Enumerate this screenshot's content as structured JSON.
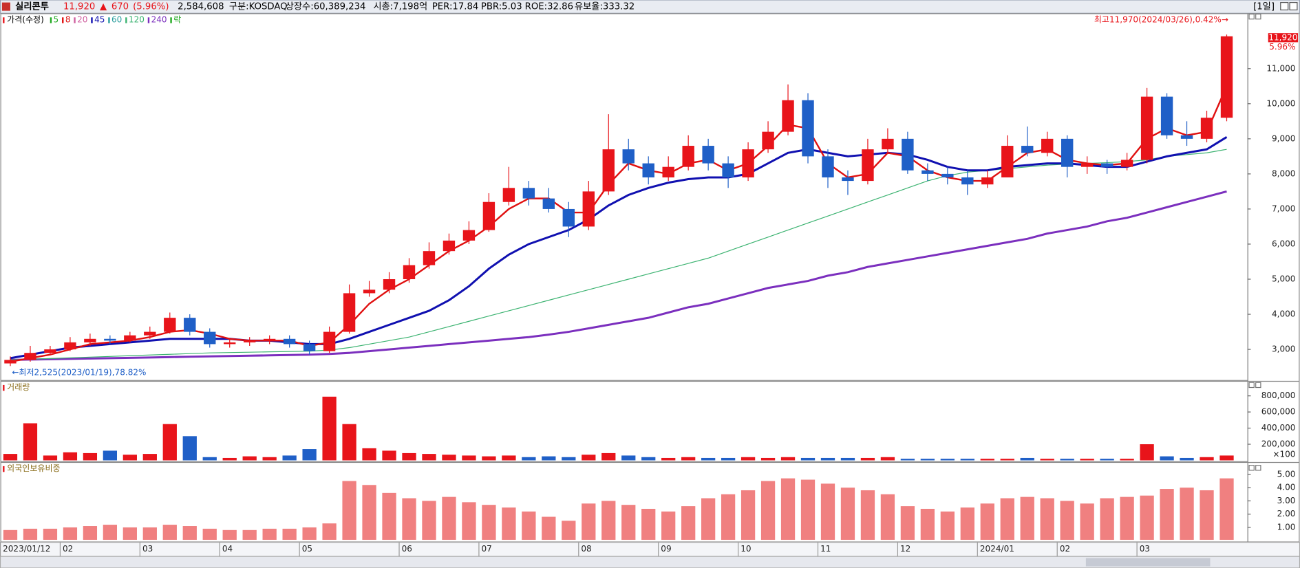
{
  "header": {
    "name": "실리콘투",
    "price": "11,920",
    "arrow": "▲",
    "change": "670",
    "change_pct": "(5.96%)",
    "volume": "2,584,608",
    "market": "구분:KOSDAQ",
    "shares": "상장수:60,389,234",
    "cap": "시총:7,198억",
    "per": "PER:17.84",
    "pbr": "PBR:5.03",
    "roe": "ROE:32.86",
    "reserve": "유보율:333.32",
    "period": "[1일]"
  },
  "chart_data": [
    {
      "type": "candlestick",
      "title": "가격(수정)",
      "legend": [
        {
          "name": "5",
          "color": "#22aa22"
        },
        {
          "name": "8",
          "color": "#e01010"
        },
        {
          "name": "20",
          "color": "#d060a0"
        },
        {
          "name": "45",
          "color": "#1010b0"
        },
        {
          "name": "60",
          "color": "#2a9d9d"
        },
        {
          "name": "120",
          "color": "#3cb371"
        },
        {
          "name": "240",
          "color": "#7b2fbe"
        },
        {
          "name": "락",
          "color": "#22aa22"
        }
      ],
      "categories": [
        "2023/01/12",
        null,
        null,
        "02",
        null,
        null,
        null,
        "03",
        null,
        null,
        null,
        "04",
        null,
        null,
        null,
        "05",
        null,
        null,
        null,
        null,
        "06",
        null,
        null,
        null,
        "07",
        null,
        null,
        null,
        null,
        "08",
        null,
        null,
        null,
        "09",
        null,
        null,
        null,
        "10",
        null,
        null,
        null,
        "11",
        null,
        null,
        null,
        "12",
        null,
        null,
        null,
        "2024/01",
        null,
        null,
        null,
        "02",
        null,
        null,
        null,
        "03",
        null,
        null,
        null,
        null
      ],
      "open": [
        2600,
        2700,
        2900,
        3000,
        3200,
        3300,
        3250,
        3400,
        3500,
        3900,
        3500,
        3150,
        3200,
        3250,
        3300,
        3150,
        2950,
        3500,
        4600,
        4700,
        5000,
        5400,
        5800,
        6100,
        6400,
        7200,
        7600,
        7300,
        7000,
        6500,
        7500,
        8700,
        8300,
        7900,
        8200,
        8800,
        8300,
        7900,
        8700,
        9200,
        10100,
        8500,
        7900,
        7800,
        8700,
        9000,
        8100,
        8000,
        7900,
        7700,
        7900,
        8800,
        8600,
        9000,
        8200,
        8300,
        8200,
        8400,
        10200,
        9100,
        9000,
        9600
      ],
      "high": [
        2800,
        3100,
        3100,
        3350,
        3450,
        3400,
        3500,
        3650,
        4050,
        4000,
        3600,
        3300,
        3350,
        3400,
        3400,
        3250,
        3650,
        4850,
        4950,
        5200,
        5600,
        6050,
        6300,
        6650,
        7450,
        8200,
        7800,
        7600,
        7200,
        7800,
        9700,
        9000,
        8500,
        8500,
        9100,
        9000,
        8500,
        8900,
        9500,
        10550,
        10300,
        8700,
        8100,
        9000,
        9300,
        9200,
        8300,
        8200,
        8100,
        8100,
        9100,
        9350,
        9200,
        9100,
        8500,
        8400,
        8600,
        10450,
        10300,
        9500,
        9800,
        11970
      ],
      "low": [
        2525,
        2650,
        2850,
        2950,
        3100,
        3150,
        3200,
        3300,
        3450,
        3400,
        3050,
        3050,
        3100,
        3150,
        3050,
        2850,
        2900,
        3450,
        4500,
        4600,
        4900,
        5300,
        5700,
        6000,
        6350,
        7100,
        7100,
        6900,
        6200,
        6400,
        7400,
        8100,
        7700,
        7800,
        8100,
        8100,
        7600,
        7800,
        8600,
        9100,
        8300,
        7600,
        7400,
        7700,
        8600,
        8000,
        7800,
        7700,
        7400,
        7600,
        7900,
        8500,
        8500,
        7900,
        8000,
        8000,
        8100,
        8300,
        9000,
        8800,
        8900,
        9500
      ],
      "close": [
        2700,
        2900,
        3000,
        3200,
        3300,
        3250,
        3400,
        3500,
        3900,
        3500,
        3150,
        3200,
        3250,
        3300,
        3150,
        2950,
        3500,
        4600,
        4700,
        5000,
        5400,
        5800,
        6100,
        6400,
        7200,
        7600,
        7300,
        7000,
        6500,
        7500,
        8700,
        8300,
        7900,
        8200,
        8800,
        8300,
        7900,
        8700,
        9200,
        10100,
        8500,
        7900,
        7800,
        8700,
        9000,
        8100,
        8000,
        7900,
        7700,
        7900,
        8800,
        8600,
        9000,
        8200,
        8300,
        8200,
        8400,
        10200,
        9100,
        9000,
        9600,
        11920
      ],
      "up_color": "#e8141a",
      "down_color": "#1f5fc7",
      "series": [
        {
          "name": "240",
          "color": "#7b2fbe",
          "width": 2.5,
          "values": [
            2700,
            2710,
            2720,
            2730,
            2740,
            2750,
            2760,
            2770,
            2780,
            2790,
            2800,
            2810,
            2820,
            2830,
            2840,
            2850,
            2870,
            2900,
            2950,
            3000,
            3050,
            3100,
            3150,
            3200,
            3250,
            3300,
            3350,
            3420,
            3500,
            3600,
            3700,
            3800,
            3900,
            4050,
            4200,
            4300,
            4450,
            4600,
            4750,
            4850,
            4950,
            5100,
            5200,
            5350,
            5450,
            5550,
            5650,
            5750,
            5850,
            5950,
            6050,
            6150,
            6300,
            6400,
            6500,
            6650,
            6750,
            6900,
            7050,
            7200,
            7350,
            7500
          ]
        },
        {
          "name": "120",
          "color": "#3cb371",
          "width": 1,
          "values": [
            2700,
            2720,
            2740,
            2760,
            2780,
            2800,
            2820,
            2840,
            2860,
            2880,
            2900,
            2910,
            2920,
            2930,
            2940,
            2950,
            2980,
            3050,
            3150,
            3250,
            3350,
            3500,
            3650,
            3800,
            3950,
            4100,
            4250,
            4400,
            4550,
            4700,
            4850,
            5000,
            5150,
            5300,
            5450,
            5600,
            5800,
            6000,
            6200,
            6400,
            6600,
            6800,
            7000,
            7200,
            7400,
            7600,
            7800,
            7950,
            8050,
            8100,
            8150,
            8200,
            8250,
            8280,
            8300,
            8320,
            8350,
            8400,
            8500,
            8550,
            8600,
            8700
          ]
        },
        {
          "name": "45",
          "color": "#1010b0",
          "width": 2.5,
          "values": [
            2750,
            2850,
            2950,
            3050,
            3100,
            3150,
            3200,
            3250,
            3300,
            3300,
            3300,
            3300,
            3250,
            3250,
            3200,
            3150,
            3150,
            3300,
            3500,
            3700,
            3900,
            4100,
            4400,
            4800,
            5300,
            5700,
            6000,
            6200,
            6400,
            6700,
            7100,
            7400,
            7600,
            7750,
            7850,
            7900,
            7900,
            8000,
            8300,
            8600,
            8700,
            8600,
            8500,
            8550,
            8600,
            8550,
            8400,
            8200,
            8100,
            8100,
            8200,
            8250,
            8300,
            8300,
            8250,
            8200,
            8200,
            8350,
            8500,
            8600,
            8700,
            9050
          ]
        },
        {
          "name": "8",
          "color": "#e01010",
          "width": 2,
          "values": [
            2650,
            2750,
            2850,
            3000,
            3150,
            3200,
            3250,
            3350,
            3500,
            3550,
            3450,
            3300,
            3250,
            3250,
            3250,
            3100,
            3200,
            3700,
            4300,
            4700,
            5000,
            5400,
            5800,
            6100,
            6500,
            7000,
            7300,
            7300,
            6900,
            6900,
            7700,
            8300,
            8100,
            8000,
            8300,
            8400,
            8100,
            8300,
            8800,
            9400,
            9300,
            8300,
            7900,
            8000,
            8600,
            8500,
            8100,
            7900,
            7800,
            7800,
            8200,
            8600,
            8700,
            8400,
            8300,
            8250,
            8300,
            9000,
            9300,
            9100,
            9200,
            10500
          ]
        }
      ],
      "ylim": [
        2150,
        12530
      ],
      "yticks": [
        {
          "value": 3000,
          "label": "3,000"
        },
        {
          "value": 4000,
          "label": "4,000"
        },
        {
          "value": 5000,
          "label": "5,000"
        },
        {
          "value": 6000,
          "label": "6,000"
        },
        {
          "value": 7000,
          "label": "7,000"
        },
        {
          "value": 8000,
          "label": "8,000"
        },
        {
          "value": 9000,
          "label": "9,000"
        },
        {
          "value": 10000,
          "label": "10,000"
        },
        {
          "value": 11000,
          "label": "11,000"
        }
      ],
      "annotations": [
        "최고11,970(2024/03/26),0.42%→",
        "←최저2,525(2023/01/19),78.82%"
      ],
      "last_price": "11,920",
      "last_change": "5.96%"
    },
    {
      "type": "bar",
      "title": "거래량",
      "unit": "×100",
      "values": [
        80000,
        460000,
        60000,
        100000,
        90000,
        120000,
        70000,
        80000,
        450000,
        300000,
        40000,
        30000,
        50000,
        40000,
        60000,
        140000,
        790000,
        450000,
        150000,
        120000,
        90000,
        80000,
        70000,
        60000,
        50000,
        60000,
        40000,
        50000,
        40000,
        70000,
        90000,
        60000,
        40000,
        30000,
        40000,
        30000,
        30000,
        40000,
        30000,
        40000,
        30000,
        30000,
        30000,
        30000,
        40000,
        20000,
        20000,
        20000,
        20000,
        20000,
        20000,
        30000,
        20000,
        20000,
        20000,
        20000,
        20000,
        200000,
        50000,
        30000,
        40000,
        60000
      ],
      "ylim": [
        0,
        955000
      ],
      "yticks": [
        {
          "value": 200000,
          "label": "200,000"
        },
        {
          "value": 400000,
          "label": "400,000"
        },
        {
          "value": 600000,
          "label": "600,000"
        },
        {
          "value": 800000,
          "label": "800,000"
        }
      ]
    },
    {
      "type": "bar",
      "title": "외국인보유비중",
      "color": "#f08080",
      "values": [
        0.8,
        0.9,
        0.9,
        1.0,
        1.1,
        1.2,
        1.0,
        1.0,
        1.2,
        1.1,
        0.9,
        0.8,
        0.8,
        0.9,
        0.9,
        1.0,
        1.3,
        4.5,
        4.2,
        3.6,
        3.2,
        3.0,
        3.3,
        2.9,
        2.7,
        2.5,
        2.2,
        1.8,
        1.5,
        2.8,
        3.0,
        2.7,
        2.4,
        2.2,
        2.6,
        3.2,
        3.5,
        3.8,
        4.5,
        4.7,
        4.6,
        4.3,
        4.0,
        3.8,
        3.5,
        2.6,
        2.4,
        2.2,
        2.5,
        2.8,
        3.2,
        3.3,
        3.2,
        3.0,
        2.8,
        3.2,
        3.3,
        3.4,
        3.9,
        4.0,
        3.8,
        4.7
      ],
      "ylim": [
        0.06,
        5.62
      ],
      "yticks": [
        {
          "value": 1,
          "label": "1.00"
        },
        {
          "value": 2,
          "label": "2.00"
        },
        {
          "value": 3,
          "label": "3.00"
        },
        {
          "value": 4,
          "label": "4.00"
        },
        {
          "value": 5,
          "label": "5.00"
        }
      ]
    }
  ]
}
